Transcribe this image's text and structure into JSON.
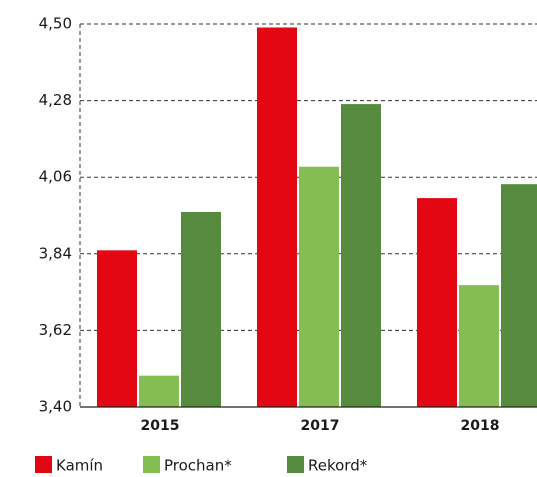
{
  "chart_data": {
    "type": "bar",
    "categories": [
      "2015",
      "2017",
      "2018"
    ],
    "series": [
      {
        "name": "Kamín",
        "color": "#e30613",
        "values": [
          3.85,
          4.49,
          4.0
        ]
      },
      {
        "name": "Prochan*",
        "color": "#84bd51",
        "values": [
          3.49,
          4.09,
          3.75
        ]
      },
      {
        "name": "Rekord*",
        "color": "#568b3f",
        "values": [
          3.96,
          4.27,
          4.04
        ]
      }
    ],
    "ylim": [
      3.4,
      4.5
    ],
    "yticks": [
      {
        "value": 3.4,
        "label": "3,40"
      },
      {
        "value": 3.62,
        "label": "3,62"
      },
      {
        "value": 3.84,
        "label": "3,84"
      },
      {
        "value": 4.06,
        "label": "4,06"
      },
      {
        "value": 4.28,
        "label": "4,28"
      },
      {
        "value": 4.5,
        "label": "4,50"
      }
    ],
    "grid": true
  }
}
